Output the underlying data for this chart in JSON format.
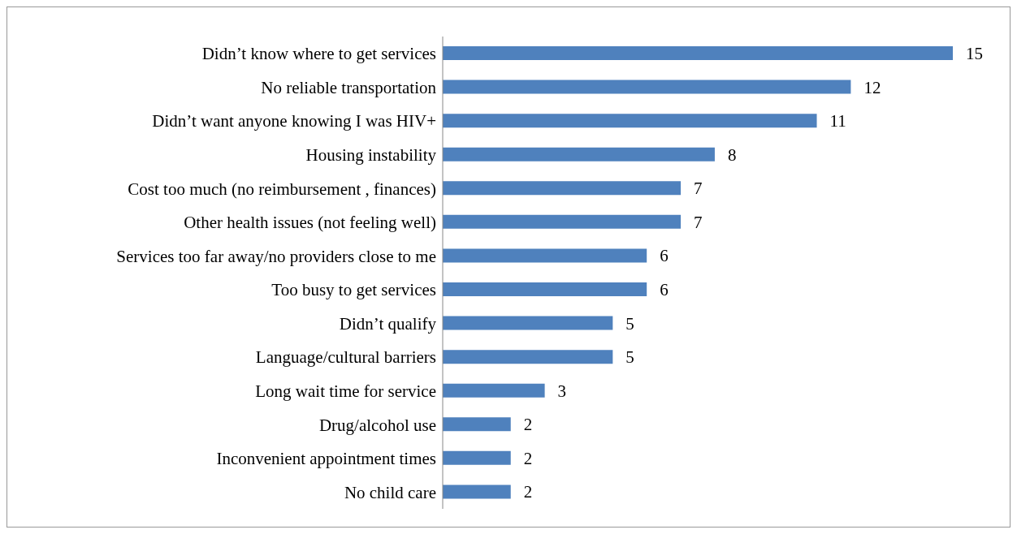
{
  "chart_data": {
    "type": "bar",
    "orientation": "horizontal",
    "categories": [
      "Didn’t know where to get services",
      "No reliable transportation",
      "Didn’t want anyone knowing I was HIV+",
      "Housing instability",
      "Cost too much (no reimbursement , finances)",
      "Other health issues (not feeling well)",
      "Services too far away/no providers close to me",
      "Too busy to get services",
      "Didn’t qualify",
      "Language/cultural barriers",
      "Long wait time for service",
      "Drug/alcohol use",
      "Inconvenient appointment times",
      "No child care"
    ],
    "values": [
      15,
      12,
      11,
      8,
      7,
      7,
      6,
      6,
      5,
      5,
      3,
      2,
      2,
      2
    ],
    "color": "#4f81bd",
    "data_labels": true,
    "grid": false,
    "legend": false
  }
}
